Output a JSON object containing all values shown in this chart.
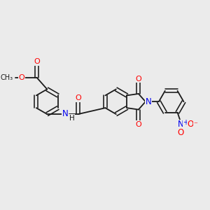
{
  "background_color": "#ebebeb",
  "bond_color": "#1a1a1a",
  "O_color": "#ff0000",
  "N_color": "#0000ee",
  "NH_color": "#0000ee",
  "figsize": [
    3.0,
    3.0
  ],
  "dpi": 100,
  "xlim": [
    0,
    12
  ],
  "ylim": [
    0,
    10
  ]
}
